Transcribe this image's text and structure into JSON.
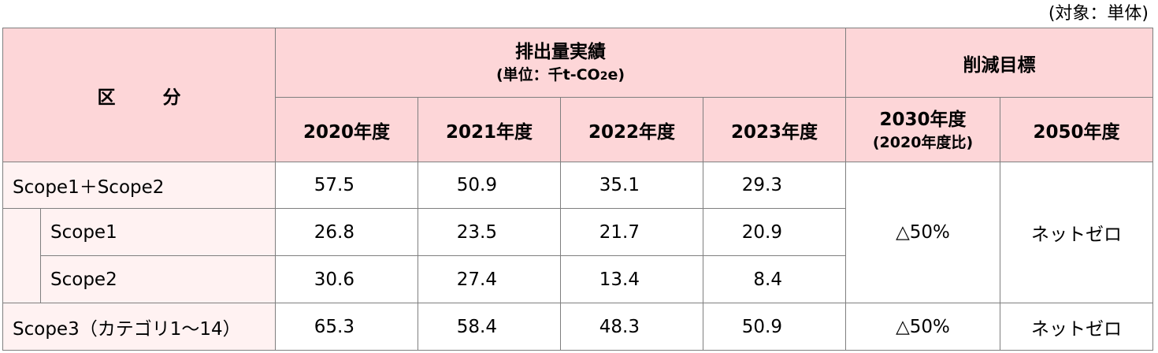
{
  "scope_note": "(対象：単体)",
  "header": {
    "category": "区　　分",
    "category_left": "区",
    "category_right": "分",
    "actual_title": "排出量実績",
    "actual_unit_prefix": "(単位：千t-CO",
    "actual_unit_sub": "2",
    "actual_unit_suffix": "e)",
    "target_title": "削減目標",
    "years": [
      "2020年度",
      "2021年度",
      "2022年度",
      "2023年度"
    ],
    "target_2030": "2030年度",
    "target_2030_note": "(2020年度比)",
    "target_2050": "2050年度"
  },
  "rows": [
    {
      "label": "Scope1＋Scope2",
      "values": [
        "57.5",
        "50.9",
        "35.1",
        "29.3"
      ]
    },
    {
      "label": "Scope1",
      "values": [
        "26.8",
        "23.5",
        "21.7",
        "20.9"
      ]
    },
    {
      "label": "Scope2",
      "values": [
        "30.6",
        "27.4",
        "13.4",
        "8.4"
      ]
    },
    {
      "label": "Scope3（カテゴリ1～14）",
      "values": [
        "65.3",
        "58.4",
        "48.3",
        "50.9"
      ]
    }
  ],
  "targets": {
    "scope12_2030": "△50%",
    "scope12_2050": "ネットゼロ",
    "scope3_2030": "△50%",
    "scope3_2050": "ネットゼロ"
  },
  "colors": {
    "header_bg": "#fdd6d8",
    "label_bg": "#fff2f2",
    "border": "#7f7f7f"
  }
}
